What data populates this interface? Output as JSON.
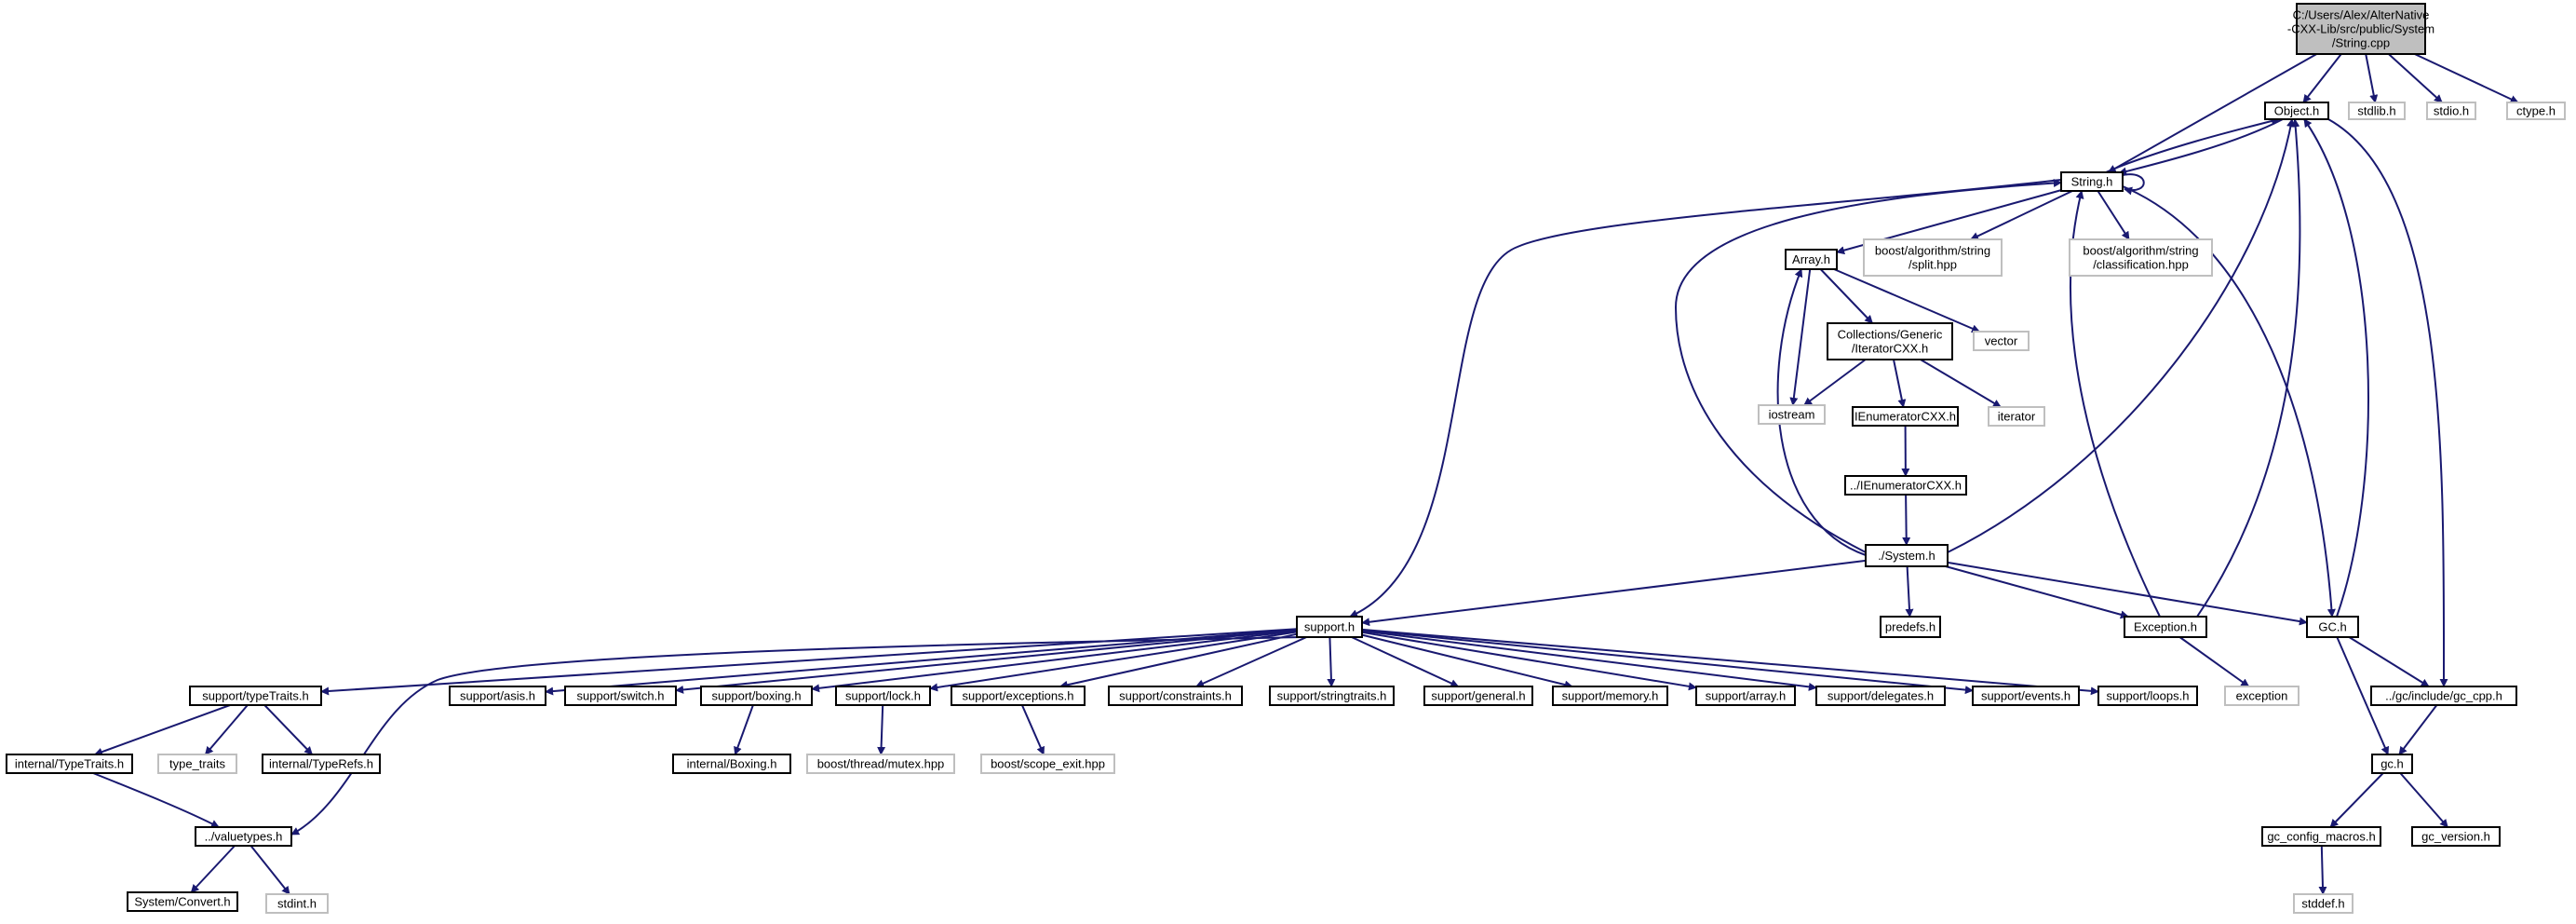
{
  "colors": {
    "edge": "#191970",
    "root_fill": "#bfbfbf",
    "root_border": "#000000",
    "header_fill": "#ffffff",
    "header_border": "#000000",
    "system_fill": "#ffffff",
    "system_border": "#bfbfbf"
  },
  "nodes": [
    {
      "id": "root",
      "lines": [
        "C:/Users/Alex/AlterNative",
        "-CXX-Lib/src/public/System",
        "/String.cpp"
      ],
      "kind": "root"
    },
    {
      "id": "object_h",
      "lines": [
        "Object.h"
      ],
      "kind": "header"
    },
    {
      "id": "stdlib_h",
      "lines": [
        "stdlib.h"
      ],
      "kind": "system"
    },
    {
      "id": "stdio_h",
      "lines": [
        "stdio.h"
      ],
      "kind": "system"
    },
    {
      "id": "ctype_h",
      "lines": [
        "ctype.h"
      ],
      "kind": "system"
    },
    {
      "id": "string_h",
      "lines": [
        "String.h"
      ],
      "kind": "header"
    },
    {
      "id": "boost_split",
      "lines": [
        "boost/algorithm/string",
        "/split.hpp"
      ],
      "kind": "system"
    },
    {
      "id": "boost_class",
      "lines": [
        "boost/algorithm/string",
        "/classification.hpp"
      ],
      "kind": "system"
    },
    {
      "id": "array_h",
      "lines": [
        "Array.h"
      ],
      "kind": "header"
    },
    {
      "id": "iterator_cxx",
      "lines": [
        "Collections/Generic",
        "/IteratorCXX.h"
      ],
      "kind": "header"
    },
    {
      "id": "vector",
      "lines": [
        "vector"
      ],
      "kind": "system"
    },
    {
      "id": "iostream",
      "lines": [
        "iostream"
      ],
      "kind": "system"
    },
    {
      "id": "ienum_cxx",
      "lines": [
        "IEnumeratorCXX.h"
      ],
      "kind": "header"
    },
    {
      "id": "iterator",
      "lines": [
        "iterator"
      ],
      "kind": "system"
    },
    {
      "id": "ienum_up",
      "lines": [
        "../IEnumeratorCXX.h"
      ],
      "kind": "header"
    },
    {
      "id": "system_h",
      "lines": [
        "./System.h"
      ],
      "kind": "header"
    },
    {
      "id": "support_h",
      "lines": [
        "support.h"
      ],
      "kind": "header"
    },
    {
      "id": "predefs_h",
      "lines": [
        "predefs.h"
      ],
      "kind": "header"
    },
    {
      "id": "exception_h",
      "lines": [
        "Exception.h"
      ],
      "kind": "header"
    },
    {
      "id": "gc_h_big",
      "lines": [
        "GC.h"
      ],
      "kind": "header"
    },
    {
      "id": "exception",
      "lines": [
        "exception"
      ],
      "kind": "system"
    },
    {
      "id": "typetraits_h",
      "lines": [
        "support/typeTraits.h"
      ],
      "kind": "header"
    },
    {
      "id": "asis_h",
      "lines": [
        "support/asis.h"
      ],
      "kind": "header"
    },
    {
      "id": "switch_h",
      "lines": [
        "support/switch.h"
      ],
      "kind": "header"
    },
    {
      "id": "boxing_h",
      "lines": [
        "support/boxing.h"
      ],
      "kind": "header"
    },
    {
      "id": "lock_h",
      "lines": [
        "support/lock.h"
      ],
      "kind": "header"
    },
    {
      "id": "exceptions_h",
      "lines": [
        "support/exceptions.h"
      ],
      "kind": "header"
    },
    {
      "id": "constraints_h",
      "lines": [
        "support/constraints.h"
      ],
      "kind": "header"
    },
    {
      "id": "stringtraits_h",
      "lines": [
        "support/stringtraits.h"
      ],
      "kind": "header"
    },
    {
      "id": "general_h",
      "lines": [
        "support/general.h"
      ],
      "kind": "header"
    },
    {
      "id": "memory_h",
      "lines": [
        "support/memory.h"
      ],
      "kind": "header"
    },
    {
      "id": "sarray_h",
      "lines": [
        "support/array.h"
      ],
      "kind": "header"
    },
    {
      "id": "delegates_h",
      "lines": [
        "support/delegates.h"
      ],
      "kind": "header"
    },
    {
      "id": "events_h",
      "lines": [
        "support/events.h"
      ],
      "kind": "header"
    },
    {
      "id": "loops_h",
      "lines": [
        "support/loops.h"
      ],
      "kind": "header"
    },
    {
      "id": "gc_cpp_h",
      "lines": [
        "../gc/include/gc_cpp.h"
      ],
      "kind": "header"
    },
    {
      "id": "int_typetraits_h",
      "lines": [
        "internal/TypeTraits.h"
      ],
      "kind": "header"
    },
    {
      "id": "type_traits",
      "lines": [
        "type_traits"
      ],
      "kind": "system"
    },
    {
      "id": "int_typerefs_h",
      "lines": [
        "internal/TypeRefs.h"
      ],
      "kind": "header"
    },
    {
      "id": "int_boxing_h",
      "lines": [
        "internal/Boxing.h"
      ],
      "kind": "header"
    },
    {
      "id": "boost_mutex",
      "lines": [
        "boost/thread/mutex.hpp"
      ],
      "kind": "system"
    },
    {
      "id": "boost_scope_exit",
      "lines": [
        "boost/scope_exit.hpp"
      ],
      "kind": "system"
    },
    {
      "id": "gc_h",
      "lines": [
        "gc.h"
      ],
      "kind": "header"
    },
    {
      "id": "valuetypes_h",
      "lines": [
        "../valuetypes.h"
      ],
      "kind": "header"
    },
    {
      "id": "gc_config_h",
      "lines": [
        "gc_config_macros.h"
      ],
      "kind": "header"
    },
    {
      "id": "gc_version_h",
      "lines": [
        "gc_version.h"
      ],
      "kind": "header"
    },
    {
      "id": "sys_convert_h",
      "lines": [
        "System/Convert.h"
      ],
      "kind": "header"
    },
    {
      "id": "stdint_h",
      "lines": [
        "stdint.h"
      ],
      "kind": "system"
    },
    {
      "id": "stddef_h",
      "lines": [
        "stddef.h"
      ],
      "kind": "system"
    }
  ],
  "edges": [
    [
      "root",
      "object_h"
    ],
    [
      "root",
      "stdlib_h"
    ],
    [
      "root",
      "stdio_h"
    ],
    [
      "root",
      "ctype_h"
    ],
    [
      "root",
      "string_h"
    ],
    [
      "object_h",
      "string_h"
    ],
    [
      "object_h",
      "gc_cpp_h"
    ],
    [
      "string_h",
      "object_h"
    ],
    [
      "string_h",
      "string_h"
    ],
    [
      "string_h",
      "boost_split"
    ],
    [
      "string_h",
      "boost_class"
    ],
    [
      "string_h",
      "array_h"
    ],
    [
      "string_h",
      "support_h"
    ],
    [
      "string_h",
      "gc_h_big"
    ],
    [
      "array_h",
      "iterator_cxx"
    ],
    [
      "array_h",
      "vector"
    ],
    [
      "array_h",
      "iostream"
    ],
    [
      "iterator_cxx",
      "iostream"
    ],
    [
      "iterator_cxx",
      "ienum_cxx"
    ],
    [
      "iterator_cxx",
      "iterator"
    ],
    [
      "ienum_cxx",
      "ienum_up"
    ],
    [
      "ienum_up",
      "system_h"
    ],
    [
      "system_h",
      "string_h"
    ],
    [
      "system_h",
      "array_h"
    ],
    [
      "system_h",
      "object_h"
    ],
    [
      "system_h",
      "support_h"
    ],
    [
      "system_h",
      "predefs_h"
    ],
    [
      "system_h",
      "exception_h"
    ],
    [
      "system_h",
      "gc_h_big"
    ],
    [
      "exception_h",
      "string_h"
    ],
    [
      "exception_h",
      "object_h"
    ],
    [
      "exception_h",
      "exception"
    ],
    [
      "gc_h_big",
      "object_h"
    ],
    [
      "gc_h_big",
      "gc_cpp_h"
    ],
    [
      "gc_h_big",
      "gc_h"
    ],
    [
      "support_h",
      "typetraits_h"
    ],
    [
      "support_h",
      "asis_h"
    ],
    [
      "support_h",
      "switch_h"
    ],
    [
      "support_h",
      "boxing_h"
    ],
    [
      "support_h",
      "lock_h"
    ],
    [
      "support_h",
      "exceptions_h"
    ],
    [
      "support_h",
      "constraints_h"
    ],
    [
      "support_h",
      "stringtraits_h"
    ],
    [
      "support_h",
      "general_h"
    ],
    [
      "support_h",
      "memory_h"
    ],
    [
      "support_h",
      "sarray_h"
    ],
    [
      "support_h",
      "delegates_h"
    ],
    [
      "support_h",
      "events_h"
    ],
    [
      "support_h",
      "loops_h"
    ],
    [
      "support_h",
      "valuetypes_h"
    ],
    [
      "typetraits_h",
      "int_typetraits_h"
    ],
    [
      "typetraits_h",
      "type_traits"
    ],
    [
      "typetraits_h",
      "int_typerefs_h"
    ],
    [
      "int_typetraits_h",
      "valuetypes_h"
    ],
    [
      "boxing_h",
      "int_boxing_h"
    ],
    [
      "lock_h",
      "boost_mutex"
    ],
    [
      "exceptions_h",
      "boost_scope_exit"
    ],
    [
      "gc_cpp_h",
      "gc_h"
    ],
    [
      "gc_h",
      "gc_config_h"
    ],
    [
      "gc_h",
      "gc_version_h"
    ],
    [
      "gc_config_h",
      "stddef_h"
    ],
    [
      "valuetypes_h",
      "sys_convert_h"
    ],
    [
      "valuetypes_h",
      "stdint_h"
    ]
  ]
}
